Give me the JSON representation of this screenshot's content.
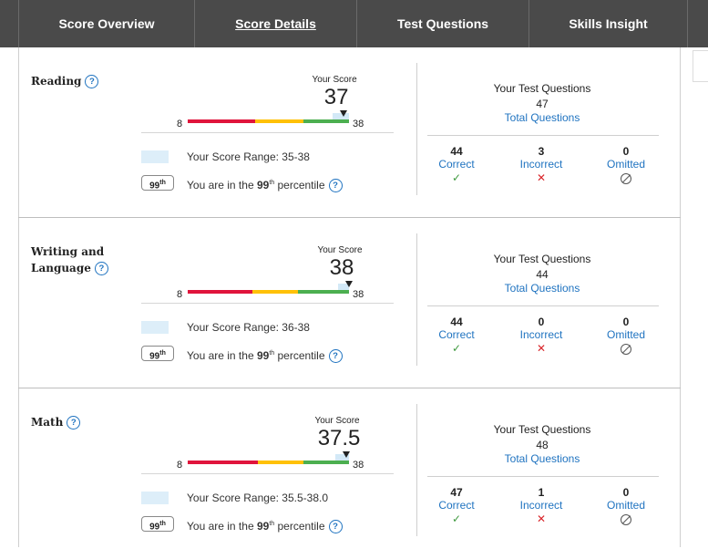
{
  "nav": {
    "tabs": [
      {
        "label": "Score Overview",
        "active": false
      },
      {
        "label": "Score Details",
        "active": true
      },
      {
        "label": "Test Questions",
        "active": false
      },
      {
        "label": "Skills Insight",
        "active": false
      }
    ]
  },
  "colors": {
    "red": "#e0143c",
    "yellow": "#ffc107",
    "green": "#4caf50",
    "range_shade": "#d3e9f7",
    "link": "#1f73c0"
  },
  "sections": [
    {
      "title_lines": [
        "Reading"
      ],
      "your_score_label": "Your Score",
      "score": "37",
      "score_value": 37,
      "scale_min": "8",
      "scale_max": "38",
      "range_low": 35,
      "range_high": 38,
      "range_text": "Your Score Range: 35-38",
      "percentile": "99",
      "percentile_suffix": "th",
      "percentile_prefix": "You are in the ",
      "percentile_word": " percentile",
      "tq_title": "Your Test Questions",
      "tq_total": "47",
      "tq_total_label": "Total Questions",
      "correct": "44",
      "correct_label": "Correct",
      "incorrect": "3",
      "incorrect_label": "Incorrect",
      "omitted": "0",
      "omitted_label": "Omitted"
    },
    {
      "title_lines": [
        "Writing and",
        "Language"
      ],
      "your_score_label": "Your Score",
      "score": "38",
      "score_value": 38,
      "scale_min": "8",
      "scale_max": "38",
      "range_low": 36,
      "range_high": 38,
      "range_text": "Your Score Range: 36-38",
      "percentile": "99",
      "percentile_suffix": "th",
      "percentile_prefix": "You are in the ",
      "percentile_word": " percentile",
      "tq_title": "Your Test Questions",
      "tq_total": "44",
      "tq_total_label": "Total Questions",
      "correct": "44",
      "correct_label": "Correct",
      "incorrect": "0",
      "incorrect_label": "Incorrect",
      "omitted": "0",
      "omitted_label": "Omitted"
    },
    {
      "title_lines": [
        "Math"
      ],
      "your_score_label": "Your Score",
      "score": "37.5",
      "score_value": 37.5,
      "scale_min": "8",
      "scale_max": "38",
      "range_low": 35.5,
      "range_high": 38.0,
      "range_text": "Your Score Range: 35.5-38.0",
      "percentile": "99",
      "percentile_suffix": "th",
      "percentile_prefix": "You are in the ",
      "percentile_word": " percentile",
      "tq_title": "Your Test Questions",
      "tq_total": "48",
      "tq_total_label": "Total Questions",
      "correct": "47",
      "correct_label": "Correct",
      "incorrect": "1",
      "incorrect_label": "Incorrect",
      "omitted": "0",
      "omitted_label": "Omitted"
    }
  ]
}
